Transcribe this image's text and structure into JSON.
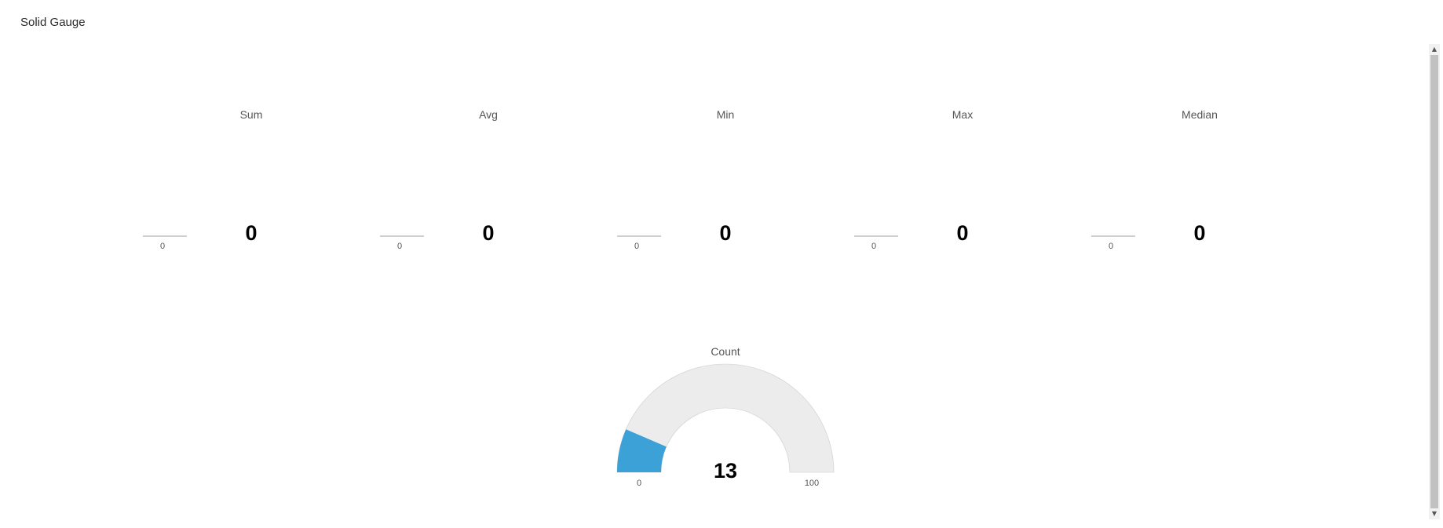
{
  "panel": {
    "title": "Solid Gauge"
  },
  "chart_data": [
    {
      "type": "solid-gauge",
      "title": "Sum",
      "value": 0,
      "min": 0,
      "max": 0
    },
    {
      "type": "solid-gauge",
      "title": "Avg",
      "value": 0,
      "min": 0,
      "max": 0
    },
    {
      "type": "solid-gauge",
      "title": "Min",
      "value": 0,
      "min": 0,
      "max": 0
    },
    {
      "type": "solid-gauge",
      "title": "Max",
      "value": 0,
      "min": 0,
      "max": 0
    },
    {
      "type": "solid-gauge",
      "title": "Median",
      "value": 0,
      "min": 0,
      "max": 0
    },
    {
      "type": "solid-gauge",
      "title": "Count",
      "value": 13,
      "min": 0,
      "max": 100
    }
  ],
  "colors": {
    "fill": "#3ba1d6",
    "track": "#ececec",
    "track_border": "#cccccc"
  },
  "scrollbar": {
    "up_icon": "▲",
    "down_icon": "▼"
  }
}
